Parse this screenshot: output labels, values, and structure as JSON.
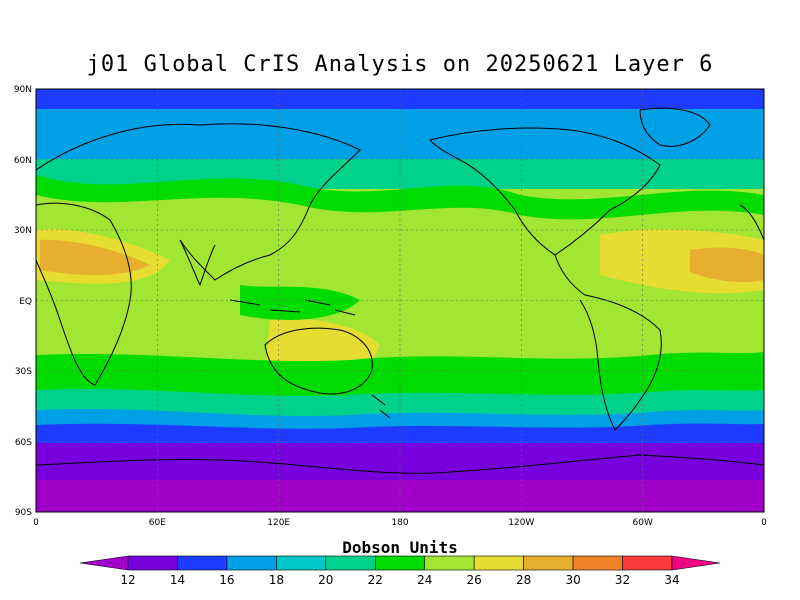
{
  "title": "j01 Global CrIS Analysis on 20250621 Layer 6",
  "map": {
    "lat_labels": [
      "90N",
      "60N",
      "30N",
      "EQ",
      "30S",
      "60S",
      "90S"
    ],
    "lon_labels": [
      "0",
      "60E",
      "120E",
      "180",
      "120W",
      "60W",
      "0"
    ]
  },
  "colorbar": {
    "title": "Dobson Units",
    "tick_labels": [
      "12",
      "14",
      "16",
      "18",
      "20",
      "22",
      "24",
      "26",
      "28",
      "30",
      "32",
      "34"
    ],
    "colors": [
      "#a000c8",
      "#7800dc",
      "#1e3cff",
      "#00a0e6",
      "#00c8c8",
      "#00d28c",
      "#00dc00",
      "#a0e632",
      "#e6dc32",
      "#e6af2d",
      "#f08228",
      "#fa3c3c",
      "#f00082"
    ]
  },
  "colors": {
    "band_north_polar": "#1e3cff",
    "band_high": "#00a0e6",
    "band_mid": "#00d28c",
    "band_green": "#00dc00",
    "band_tropics": "#a0e632",
    "warm_yellow": "#e6dc32",
    "warm_orange": "#e6af2d",
    "south_polar": "#7800dc",
    "south_polar_deep": "#a000c8",
    "coastline": "#000000"
  }
}
